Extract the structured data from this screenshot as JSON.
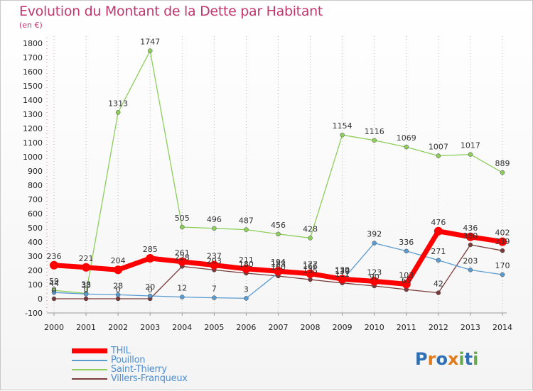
{
  "chart_data": {
    "type": "line",
    "title": "Evolution du Montant de la Dette par Habitant",
    "subtitle": "(en €)",
    "x": [
      "2000",
      "2001",
      "2002",
      "2003",
      "2004",
      "2005",
      "2006",
      "2007",
      "2008",
      "2009",
      "2010",
      "2011",
      "2012",
      "2013",
      "2014"
    ],
    "ylim": [
      -100,
      1800
    ],
    "yticks": [
      -100,
      0,
      100,
      200,
      300,
      400,
      500,
      600,
      700,
      800,
      900,
      1000,
      1100,
      1200,
      1300,
      1400,
      1500,
      1600,
      1700,
      1800
    ],
    "grid": "vertical-dotted",
    "legend_position": "bottom-left",
    "series": [
      {
        "name": "THIL",
        "color": "#ff0000",
        "values": [
          236,
          221,
          204,
          285,
          261,
          237,
          211,
          194,
          177,
          139,
          123,
          103,
          476,
          436,
          402
        ],
        "labels": [
          "236",
          "221",
          "204",
          "285",
          "261",
          "237",
          "211",
          "194",
          "177",
          "139",
          "123",
          "103",
          "476",
          "436",
          "402"
        ]
      },
      {
        "name": "Pouillon",
        "color": "#5a9bd0",
        "values": [
          44,
          33,
          28,
          20,
          12,
          7,
          3,
          183,
          166,
          130,
          392,
          336,
          271,
          203,
          170
        ],
        "labels": [
          "44",
          "33",
          "28",
          "20",
          "12",
          "7",
          "3",
          "183",
          "166",
          "130",
          "392",
          "336",
          "271",
          "203",
          "170"
        ]
      },
      {
        "name": "Saint-Thierry",
        "color": "#8dcf5a",
        "values": [
          59,
          38,
          1313,
          1747,
          505,
          496,
          487,
          456,
          428,
          1154,
          1116,
          1069,
          1007,
          1017,
          889
        ],
        "labels": [
          "59",
          "38",
          "1313",
          "1747",
          "505",
          "496",
          "487",
          "456",
          "428",
          "1154",
          "1116",
          "1069",
          "1007",
          "1017",
          "889"
        ]
      },
      {
        "name": "Villers-Franqueux",
        "color": "#7a3a3a",
        "values": [
          0,
          0,
          0,
          0,
          228,
          203,
          180,
          160,
          135,
          111,
          90,
          65,
          42,
          380,
          339
        ],
        "labels": [
          "0",
          "0",
          "0",
          "0",
          "228",
          "203",
          "180",
          "160",
          "135",
          "111",
          "90",
          "65",
          "42",
          "380",
          "339"
        ]
      }
    ]
  },
  "logo": {
    "text": "Proxiti",
    "letters": [
      "P",
      "r",
      "o",
      "x",
      "i",
      "t",
      "i"
    ],
    "colors": [
      "#2f6fb3",
      "#e07b1c",
      "#2f6fb3",
      "#e07b1c",
      "#6aa84f",
      "#2f6fb3",
      "#6aa84f"
    ]
  }
}
